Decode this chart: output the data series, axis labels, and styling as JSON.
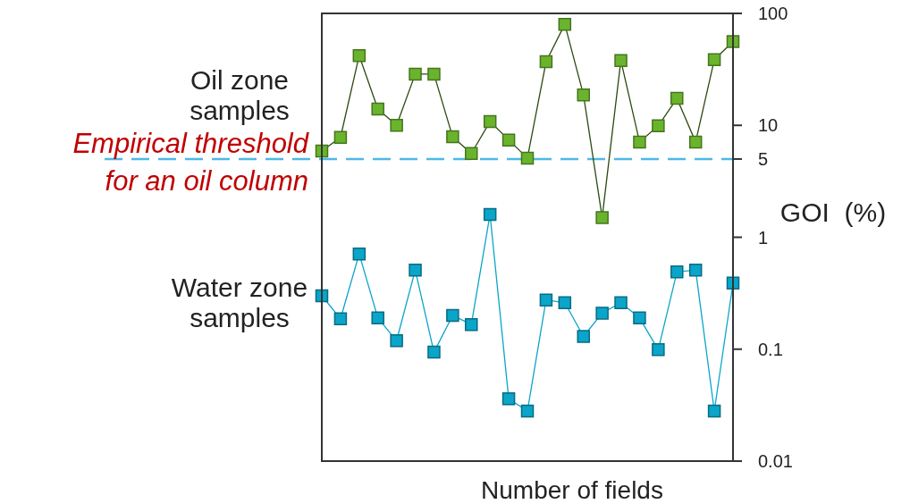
{
  "chart_data": {
    "type": "line",
    "xlabel": "Number of fields",
    "ylabel": "GOI  (%)",
    "categories": [
      null,
      null,
      null,
      null,
      null,
      null,
      null,
      null,
      null,
      null,
      null,
      null,
      null,
      null,
      null,
      null,
      null,
      null,
      null,
      null,
      null,
      null,
      null
    ],
    "series": [
      {
        "name": "Oil zone samples",
        "color": "#6ab42d",
        "values": [
          5.9,
          7.8,
          42,
          14,
          10,
          28.7,
          28.7,
          7.9,
          5.6,
          10.8,
          7.4,
          5.1,
          37,
          80,
          18.7,
          1.5,
          38,
          7.1,
          9.9,
          17.4,
          7.1,
          38.6,
          56
        ]
      },
      {
        "name": "Water zone samples",
        "color": "#0aa5c9",
        "values": [
          0.3,
          0.187,
          0.71,
          0.19,
          0.119,
          0.51,
          0.094,
          0.2,
          0.166,
          1.6,
          0.036,
          0.028,
          0.275,
          0.26,
          0.13,
          0.21,
          0.26,
          0.19,
          0.099,
          0.49,
          0.51,
          0.028,
          0.39
        ]
      }
    ],
    "log": true,
    "ylim": [
      0.01,
      100
    ],
    "yticks": [
      0.01,
      0.1,
      1,
      5,
      10,
      100
    ],
    "ref_lines": [
      {
        "axis": "y",
        "value": 5,
        "label": "Empirical threshold for an oil column",
        "color": "#4db8e8",
        "line_style": "dashed"
      }
    ],
    "marker": "square",
    "tick_labels": "y",
    "grid": false
  }
}
